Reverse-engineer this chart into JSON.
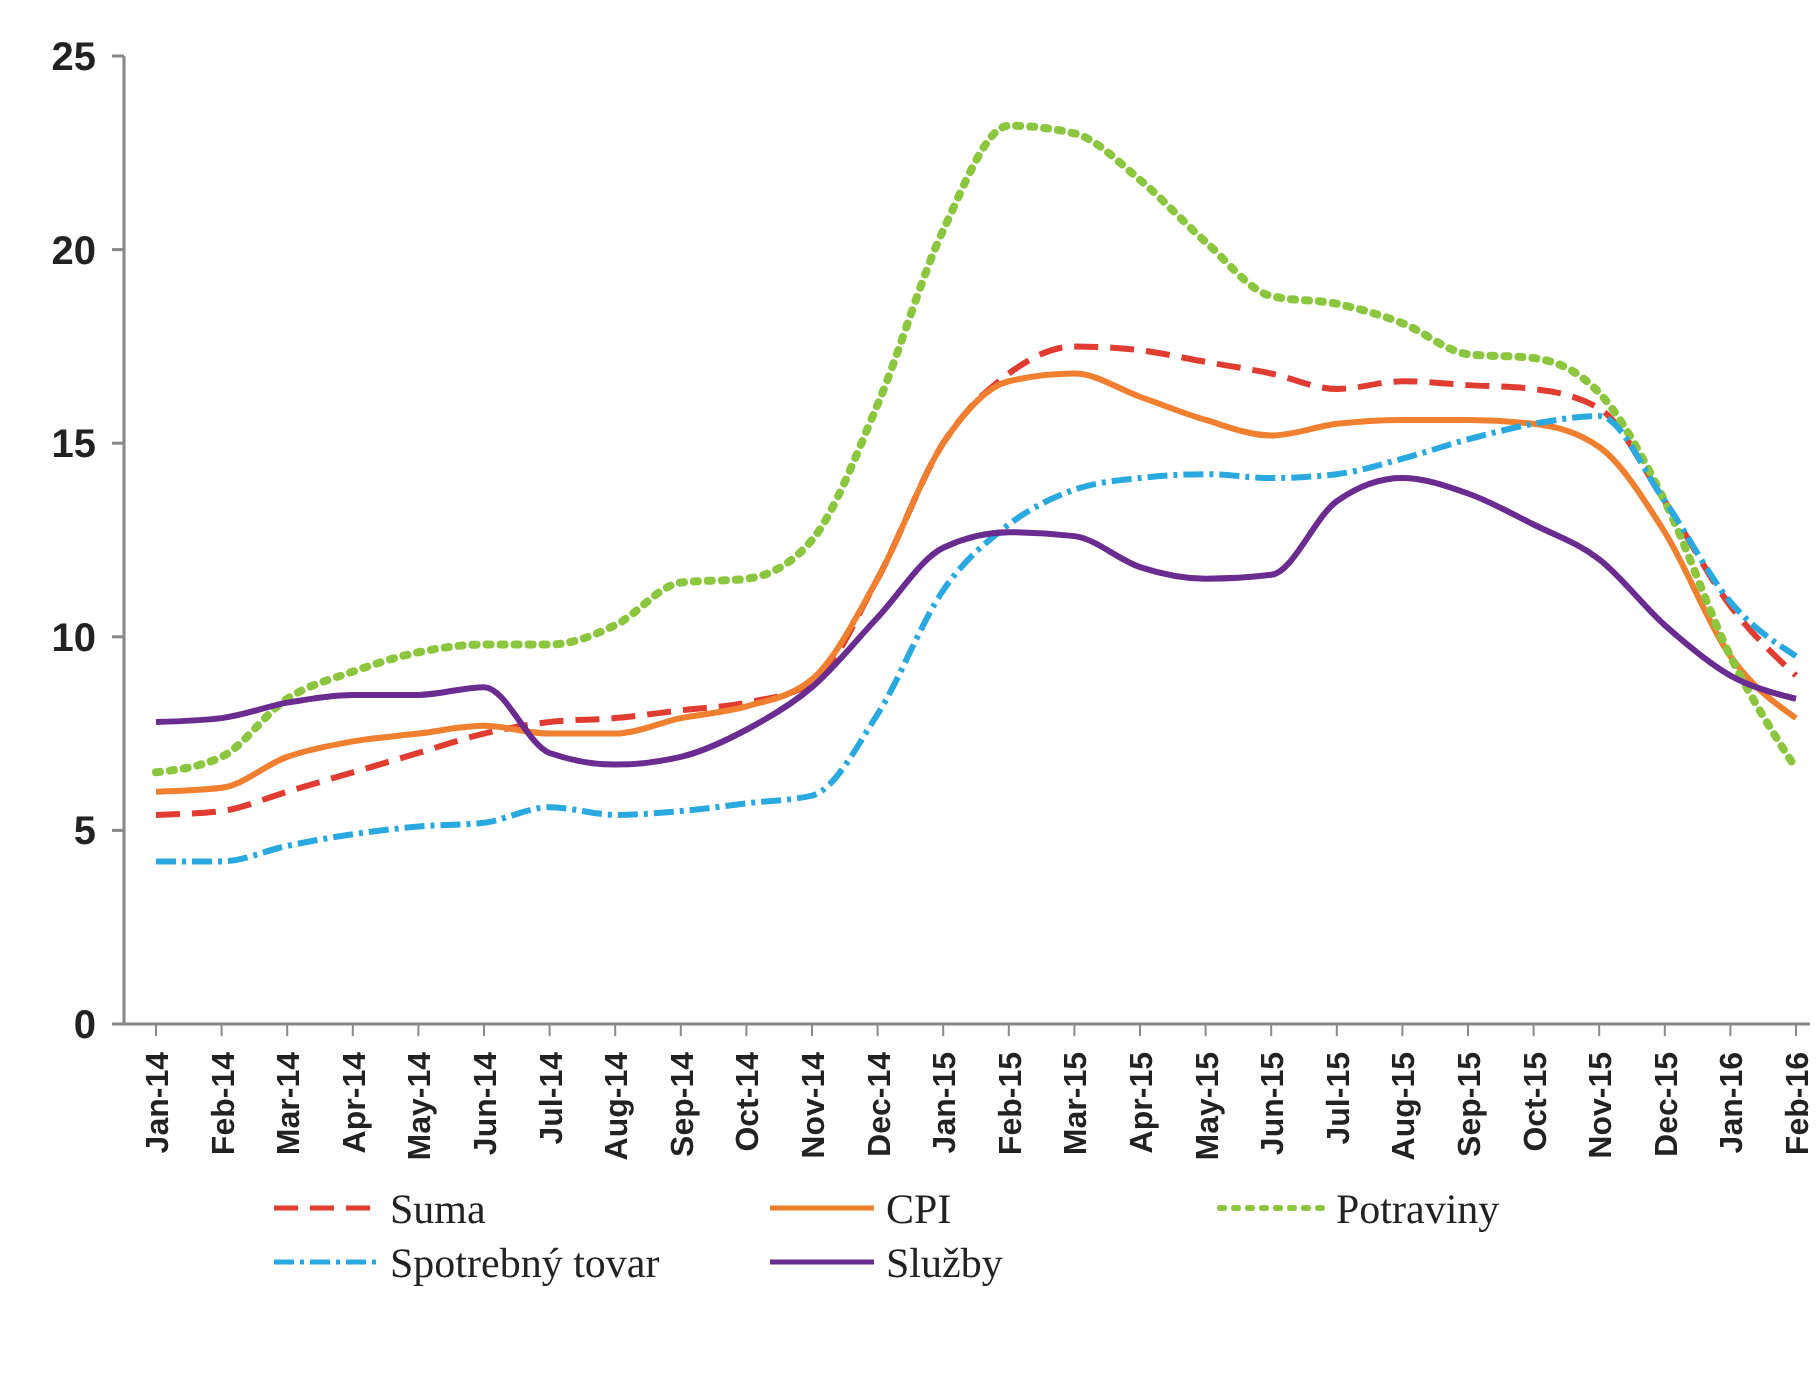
{
  "chart_data": {
    "type": "line",
    "categories": [
      "Jan-14",
      "Feb-14",
      "Mar-14",
      "Apr-14",
      "May-14",
      "Jun-14",
      "Jul-14",
      "Aug-14",
      "Sep-14",
      "Oct-14",
      "Nov-14",
      "Dec-14",
      "Jan-15",
      "Feb-15",
      "Mar-15",
      "Apr-15",
      "May-15",
      "Jun-15",
      "Jul-15",
      "Aug-15",
      "Sep-15",
      "Oct-15",
      "Nov-15",
      "Dec-15",
      "Jan-16",
      "Feb-16"
    ],
    "ylim": [
      0,
      25
    ],
    "yticks": [
      0,
      5,
      10,
      15,
      20,
      25
    ],
    "grid": false,
    "legend": "bottom",
    "series": [
      {
        "name": "Suma",
        "color": "#e03c31",
        "line_style": "dashed",
        "values": [
          5.4,
          5.5,
          6.0,
          6.5,
          7.0,
          7.5,
          7.8,
          7.9,
          8.1,
          8.3,
          8.8,
          11.5,
          15.0,
          16.8,
          17.5,
          17.4,
          17.1,
          16.8,
          16.4,
          16.6,
          16.5,
          16.4,
          15.9,
          13.5,
          10.8,
          9.0
        ]
      },
      {
        "name": "CPI",
        "color": "#f08030",
        "line_style": "solid",
        "values": [
          6.0,
          6.1,
          6.9,
          7.3,
          7.5,
          7.7,
          7.5,
          7.5,
          7.9,
          8.2,
          8.9,
          11.5,
          15.0,
          16.6,
          16.8,
          16.2,
          15.6,
          15.2,
          15.5,
          15.6,
          15.6,
          15.5,
          14.9,
          12.7,
          9.5,
          7.9
        ]
      },
      {
        "name": "Potraviny",
        "color": "#8cc63f",
        "line_style": "dotted",
        "values": [
          6.5,
          6.9,
          8.4,
          9.1,
          9.6,
          9.8,
          9.8,
          10.3,
          11.4,
          11.5,
          12.5,
          16.0,
          20.5,
          23.2,
          23.0,
          21.8,
          20.2,
          18.8,
          18.6,
          18.1,
          17.3,
          17.2,
          16.3,
          13.5,
          9.5,
          6.6
        ]
      },
      {
        "name": "Spotrebný tovar",
        "color": "#29a9e0",
        "line_style": "dashdot",
        "values": [
          4.2,
          4.2,
          4.6,
          4.9,
          5.1,
          5.2,
          5.6,
          5.4,
          5.5,
          5.7,
          5.9,
          8.0,
          11.2,
          12.9,
          13.8,
          14.1,
          14.2,
          14.1,
          14.2,
          14.6,
          15.1,
          15.5,
          15.7,
          13.5,
          10.9,
          9.5
        ]
      },
      {
        "name": "Služby",
        "color": "#6a2c91",
        "line_style": "solid",
        "values": [
          7.8,
          7.9,
          8.3,
          8.5,
          8.5,
          8.7,
          7.0,
          6.7,
          6.9,
          7.6,
          8.7,
          10.5,
          12.3,
          12.7,
          12.6,
          11.8,
          11.5,
          11.6,
          13.5,
          14.1,
          13.7,
          12.9,
          12.0,
          10.3,
          9.0,
          8.4
        ]
      }
    ]
  }
}
